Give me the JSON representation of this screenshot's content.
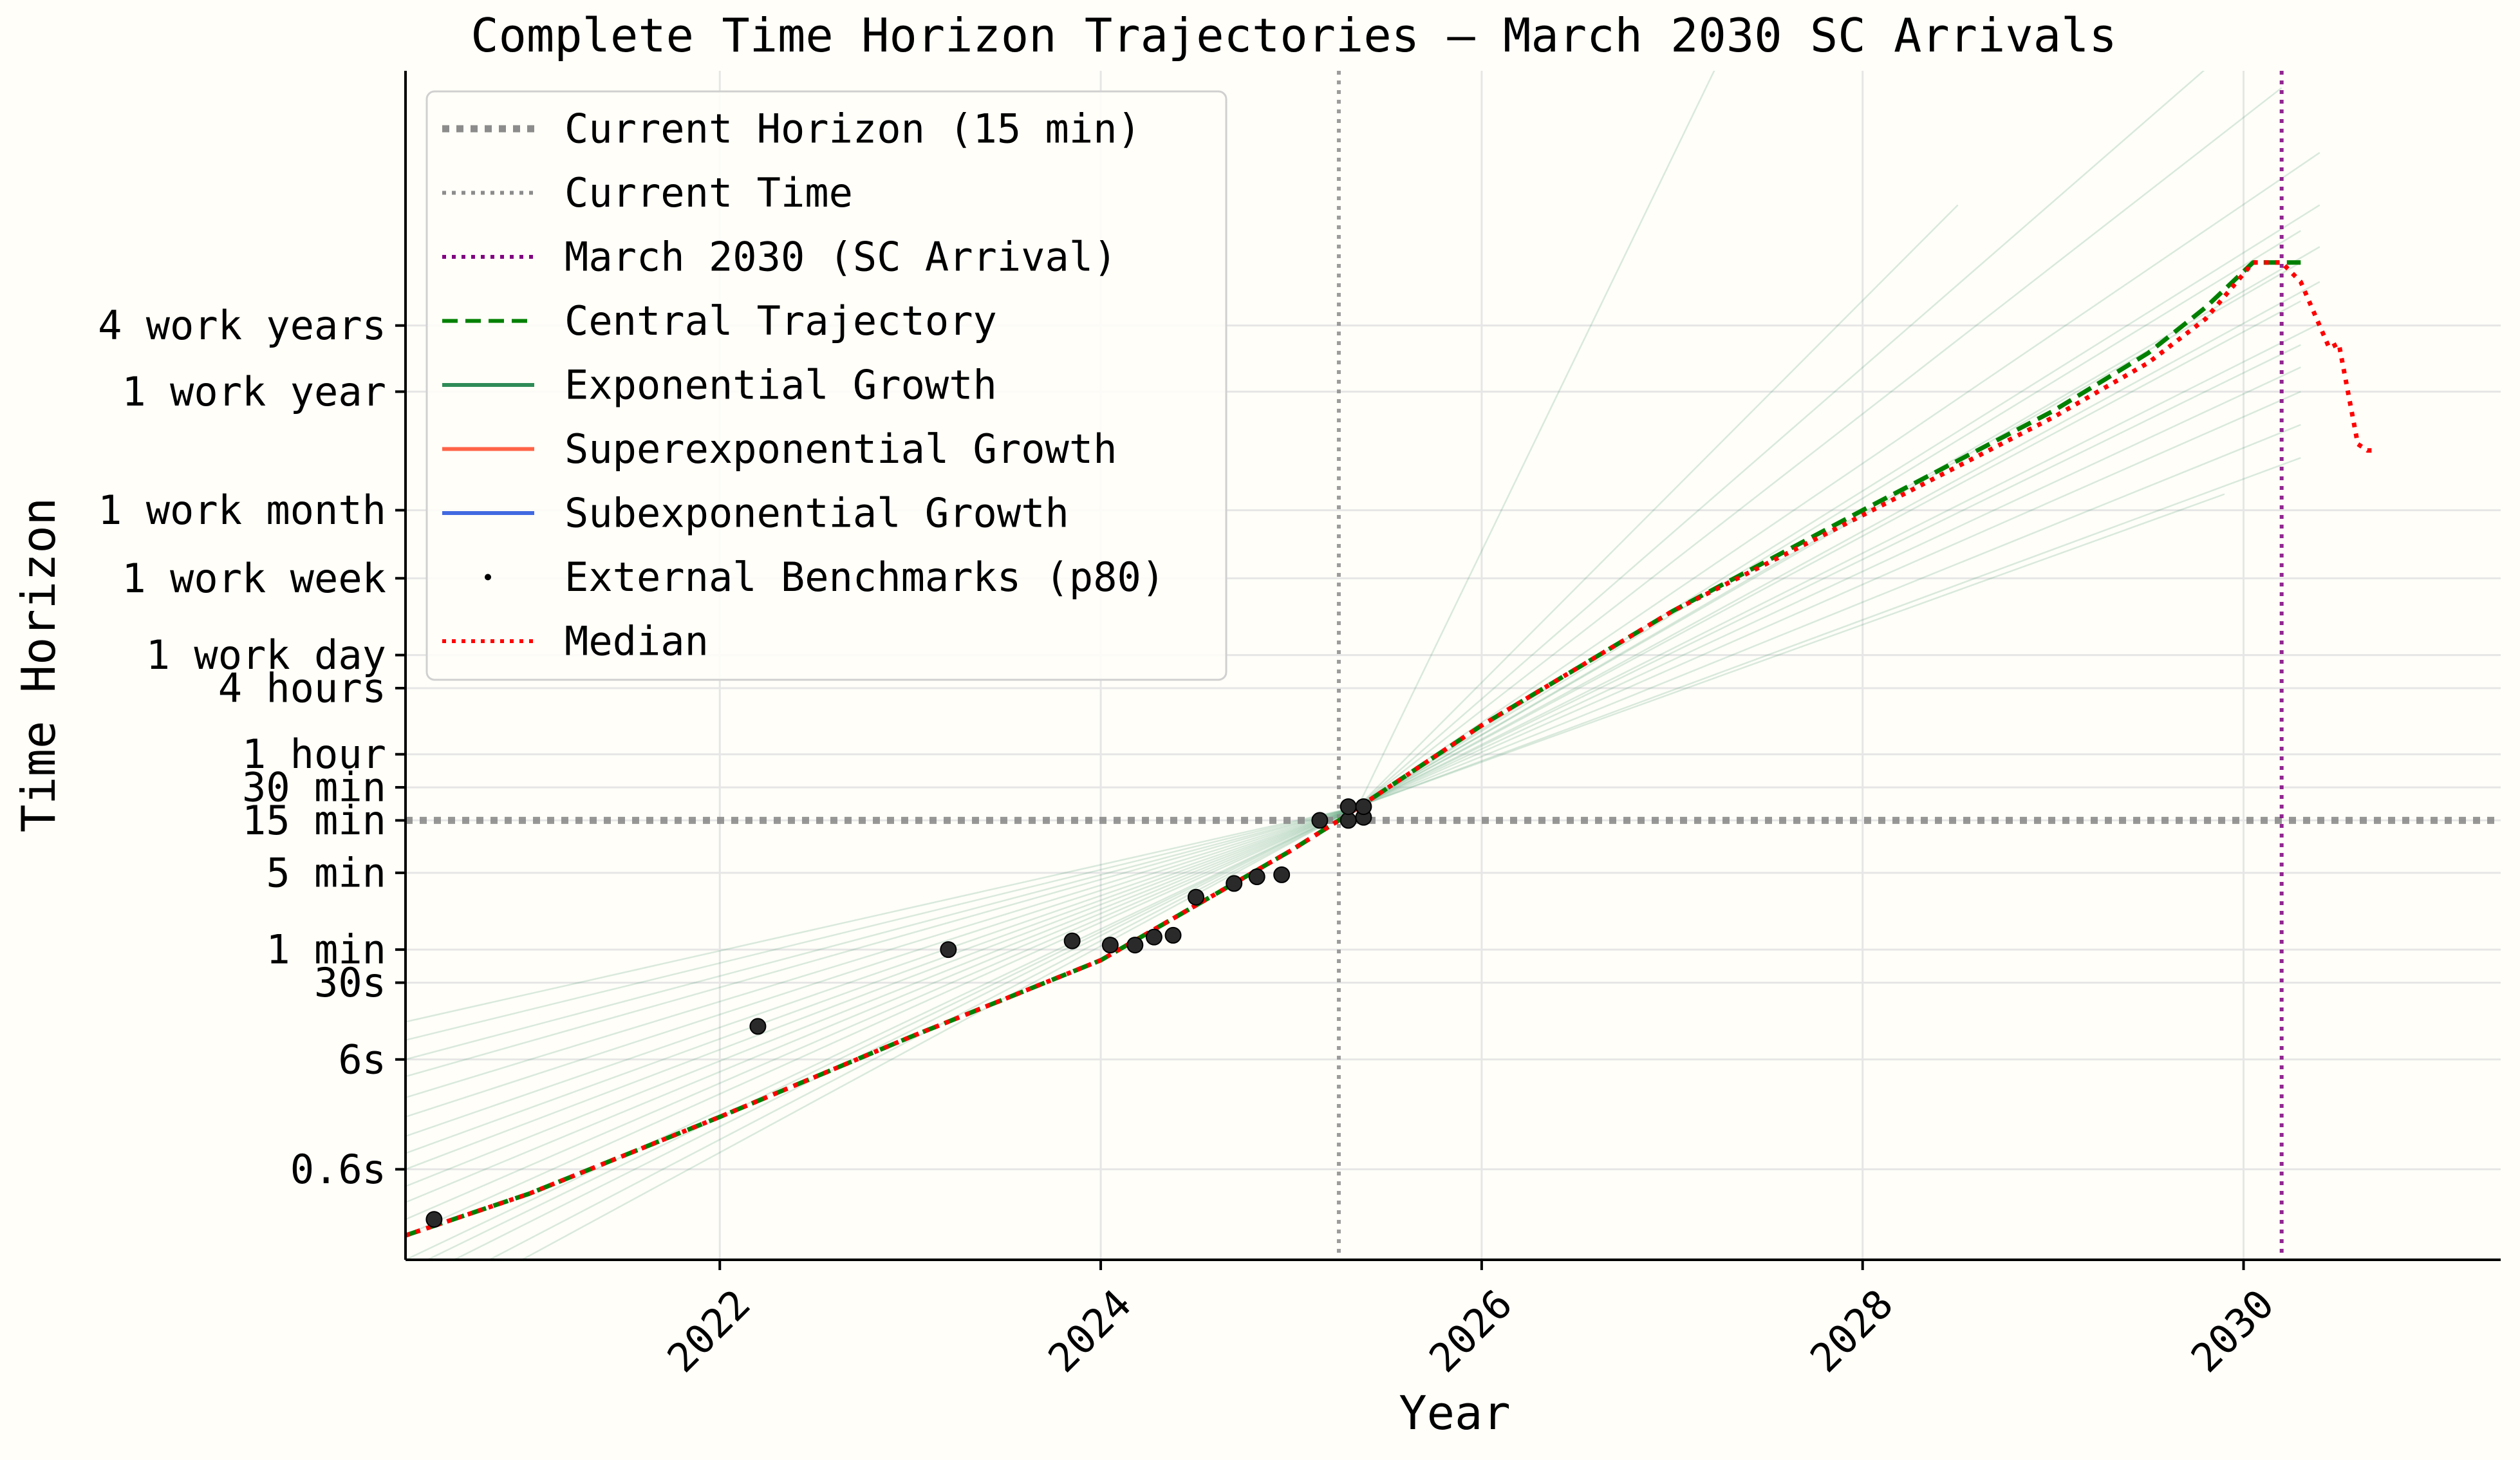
{
  "chart_data": {
    "type": "line",
    "title": "Complete Time Horizon Trajectories — March 2030 SC Arrivals",
    "xlabel": "Year",
    "ylabel": "Time Horizon",
    "xlim": [
      2020.35,
      2031.35
    ],
    "ylim_minutes": [
      0.0015,
      100000000
    ],
    "y_scale": "log",
    "grid": true,
    "legend_position": "upper-left",
    "x_ticks": [
      {
        "label": "2022",
        "value": 2022
      },
      {
        "label": "2024",
        "value": 2024
      },
      {
        "label": "2026",
        "value": 2026
      },
      {
        "label": "2028",
        "value": 2028
      },
      {
        "label": "2030",
        "value": 2030
      }
    ],
    "y_ticks": [
      {
        "label": "0.6s",
        "minutes": 0.01
      },
      {
        "label": "6s",
        "minutes": 0.1
      },
      {
        "label": "30s",
        "minutes": 0.5
      },
      {
        "label": "1 min",
        "minutes": 1
      },
      {
        "label": "5 min",
        "minutes": 5
      },
      {
        "label": "15 min",
        "minutes": 15
      },
      {
        "label": "30 min",
        "minutes": 30
      },
      {
        "label": "1 hour",
        "minutes": 60
      },
      {
        "label": "4 hours",
        "minutes": 240
      },
      {
        "label": "1 work day",
        "minutes": 480
      },
      {
        "label": "1 work week",
        "minutes": 2400
      },
      {
        "label": "1 work month",
        "minutes": 10000
      },
      {
        "label": "1 work year",
        "minutes": 120000
      },
      {
        "label": "4 work years",
        "minutes": 480000
      }
    ],
    "reference_lines": {
      "current_horizon_minutes": 15,
      "current_time": 2025.25,
      "sc_arrival": 2030.2
    },
    "legend": [
      {
        "label": "Current Horizon (15 min)",
        "color": "#8c8c8c",
        "style": "dotted-thick"
      },
      {
        "label": "Current Time",
        "color": "#8c8c8c",
        "style": "dotted"
      },
      {
        "label": "March 2030 (SC Arrival)",
        "color": "#800080",
        "style": "dotted"
      },
      {
        "label": "Central Trajectory",
        "color": "#008000",
        "style": "dashed"
      },
      {
        "label": "Exponential Growth",
        "color": "#2e8b57",
        "style": "solid"
      },
      {
        "label": "Superexponential Growth",
        "color": "#ff6347",
        "style": "solid"
      },
      {
        "label": "Subexponential Growth",
        "color": "#4169e1",
        "style": "solid"
      },
      {
        "label": "External Benchmarks (p80)",
        "color": "#000000",
        "style": "point"
      },
      {
        "label": "Median",
        "color": "#ff0000",
        "style": "dotted"
      }
    ],
    "series": [
      {
        "name": "Central Trajectory",
        "color": "#008000",
        "x": [
          2020.35,
          2021.0,
          2022.0,
          2023.0,
          2024.0,
          2025.0,
          2025.25,
          2026.0,
          2027.0,
          2028.0,
          2029.0,
          2029.5,
          2029.8,
          2030.05,
          2030.2,
          2030.3
        ],
        "y_minutes": [
          0.0025,
          0.006,
          0.03,
          0.16,
          0.8,
          8,
          15,
          110,
          1200,
          10000,
          80000,
          270000,
          700000,
          1800000,
          1800000,
          1800000
        ]
      },
      {
        "name": "Median",
        "color": "#ff0000",
        "x": [
          2020.35,
          2021.0,
          2022.0,
          2023.0,
          2024.0,
          2025.0,
          2025.25,
          2026.0,
          2027.0,
          2028.0,
          2029.0,
          2029.5,
          2029.8,
          2030.05,
          2030.2,
          2030.3,
          2030.45,
          2030.5,
          2030.6,
          2030.65,
          2030.7
        ],
        "y_minutes": [
          0.0025,
          0.006,
          0.03,
          0.16,
          0.8,
          8,
          15,
          110,
          1200,
          9000,
          70000,
          220000,
          550000,
          1800000,
          1800000,
          1200000,
          300000,
          330000,
          40000,
          35000,
          35000
        ]
      }
    ],
    "sample_trajectories": {
      "name": "Exponential Growth",
      "color": "#2e8b57",
      "x_start": 2020.35,
      "pivot": {
        "x": 2025.35,
        "y_minutes": 20
      },
      "start_y_minutes": [
        0.0004,
        0.0006,
        0.0009,
        0.0012,
        0.0015,
        0.0025,
        0.0035,
        0.005,
        0.007,
        0.01,
        0.014,
        0.02,
        0.03,
        0.045,
        0.07,
        0.1,
        0.15,
        0.22
      ],
      "end": [
        {
          "x": 2030.35,
          "y_minutes": 700000000
        },
        {
          "x": 2030.2,
          "y_minutes": 70000000
        },
        {
          "x": 2030.4,
          "y_minutes": 18000000
        },
        {
          "x": 2030.4,
          "y_minutes": 6000000
        },
        {
          "x": 2030.3,
          "y_minutes": 3500000
        },
        {
          "x": 2030.4,
          "y_minutes": 2500000
        },
        {
          "x": 2030.3,
          "y_minutes": 1800000
        },
        {
          "x": 2030.4,
          "y_minutes": 1200000
        },
        {
          "x": 2030.3,
          "y_minutes": 800000
        },
        {
          "x": 2030.4,
          "y_minutes": 500000
        },
        {
          "x": 2030.3,
          "y_minutes": 320000
        },
        {
          "x": 2030.3,
          "y_minutes": 200000
        },
        {
          "x": 2030.3,
          "y_minutes": 120000
        },
        {
          "x": 2030.3,
          "y_minutes": 60000
        },
        {
          "x": 2030.3,
          "y_minutes": 30000
        },
        {
          "x": 2029.9,
          "y_minutes": 14000
        },
        {
          "x": 2028.5,
          "y_minutes": 6000000
        },
        {
          "x": 2027.5,
          "y_minutes": 1000000000
        }
      ]
    },
    "benchmarks": {
      "name": "External Benchmarks (p80)",
      "color": "#2a2a2a",
      "points": [
        {
          "x": 2020.5,
          "y_minutes": 0.0035
        },
        {
          "x": 2022.2,
          "y_minutes": 0.2
        },
        {
          "x": 2023.2,
          "y_minutes": 1
        },
        {
          "x": 2023.85,
          "y_minutes": 1.2
        },
        {
          "x": 2024.05,
          "y_minutes": 1.1
        },
        {
          "x": 2024.18,
          "y_minutes": 1.1
        },
        {
          "x": 2024.28,
          "y_minutes": 1.3
        },
        {
          "x": 2024.38,
          "y_minutes": 1.35
        },
        {
          "x": 2024.5,
          "y_minutes": 3
        },
        {
          "x": 2024.7,
          "y_minutes": 4
        },
        {
          "x": 2024.82,
          "y_minutes": 4.6
        },
        {
          "x": 2024.95,
          "y_minutes": 4.8
        },
        {
          "x": 2025.15,
          "y_minutes": 15
        },
        {
          "x": 2025.3,
          "y_minutes": 15
        },
        {
          "x": 2025.3,
          "y_minutes": 20
        },
        {
          "x": 2025.38,
          "y_minutes": 16
        },
        {
          "x": 2025.38,
          "y_minutes": 20
        }
      ]
    }
  }
}
